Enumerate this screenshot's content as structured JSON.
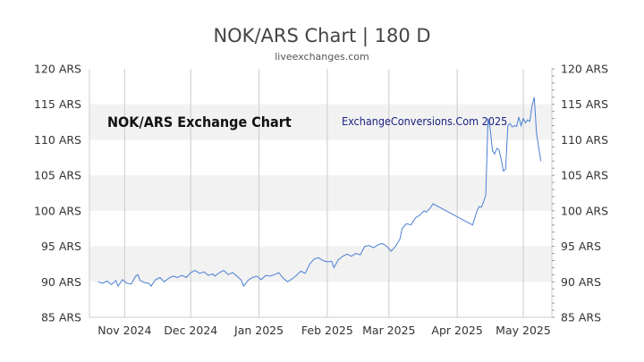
{
  "chart_data": {
    "type": "line",
    "title": "NOK/ARS Chart | 180 D",
    "subtitle": "liveexchanges.com",
    "inner_title": "NOK/ARS Exchange Chart",
    "watermark": "ExchangeConversions.Com 2025",
    "ylim": [
      85,
      120
    ],
    "y_ticks": [
      {
        "value": 120,
        "label": "120 ARS"
      },
      {
        "value": 115,
        "label": "115 ARS"
      },
      {
        "value": 110,
        "label": "110 ARS"
      },
      {
        "value": 105,
        "label": "105 ARS"
      },
      {
        "value": 100,
        "label": "100 ARS"
      },
      {
        "value": 95,
        "label": "95 ARS"
      },
      {
        "value": 90,
        "label": "90 ARS"
      },
      {
        "value": 85,
        "label": "85 ARS"
      }
    ],
    "x_ticks": [
      {
        "date": "2024-11-01",
        "label": "Nov 2024"
      },
      {
        "date": "2024-12-01",
        "label": "Dec 2024"
      },
      {
        "date": "2025-01-01",
        "label": "Jan 2025"
      },
      {
        "date": "2025-02-01",
        "label": "Feb 2025"
      },
      {
        "date": "2025-03-01",
        "label": "Mar 2025"
      },
      {
        "date": "2025-04-01",
        "label": "Apr 2025"
      },
      {
        "date": "2025-05-01",
        "label": "May 2025"
      }
    ],
    "xlim": [
      "2024-10-16",
      "2025-05-14"
    ],
    "grid": true,
    "colors": {
      "line": "#4a7fd4",
      "band": "#f2f2f2",
      "grid": "#cccccc"
    },
    "series": [
      {
        "values": [
          [
            "2024-10-20",
            90.0
          ],
          [
            "2024-10-22",
            89.8
          ],
          [
            "2024-10-24",
            90.1
          ],
          [
            "2024-10-26",
            89.6
          ],
          [
            "2024-10-28",
            90.2
          ],
          [
            "2024-10-29",
            89.4
          ],
          [
            "2024-10-31",
            90.3
          ],
          [
            "2024-11-02",
            89.8
          ],
          [
            "2024-11-04",
            89.7
          ],
          [
            "2024-11-06",
            90.8
          ],
          [
            "2024-11-07",
            91.0
          ],
          [
            "2024-11-08",
            90.2
          ],
          [
            "2024-11-10",
            89.9
          ],
          [
            "2024-11-12",
            89.8
          ],
          [
            "2024-11-13",
            89.4
          ],
          [
            "2024-11-15",
            90.3
          ],
          [
            "2024-11-17",
            90.6
          ],
          [
            "2024-11-19",
            90.0
          ],
          [
            "2024-11-21",
            90.5
          ],
          [
            "2024-11-23",
            90.8
          ],
          [
            "2024-11-25",
            90.6
          ],
          [
            "2024-11-27",
            90.9
          ],
          [
            "2024-11-29",
            90.6
          ],
          [
            "2024-12-01",
            91.3
          ],
          [
            "2024-12-03",
            91.6
          ],
          [
            "2024-12-05",
            91.2
          ],
          [
            "2024-12-07",
            91.4
          ],
          [
            "2024-12-09",
            90.9
          ],
          [
            "2024-12-11",
            91.1
          ],
          [
            "2024-12-12",
            90.8
          ],
          [
            "2024-12-14",
            91.3
          ],
          [
            "2024-12-16",
            91.6
          ],
          [
            "2024-12-18",
            91.0
          ],
          [
            "2024-12-20",
            91.3
          ],
          [
            "2024-12-22",
            90.8
          ],
          [
            "2024-12-24",
            90.2
          ],
          [
            "2024-12-25",
            89.4
          ],
          [
            "2024-12-27",
            90.2
          ],
          [
            "2024-12-29",
            90.6
          ],
          [
            "2024-12-31",
            90.8
          ],
          [
            "2025-01-02",
            90.3
          ],
          [
            "2025-01-04",
            90.9
          ],
          [
            "2025-01-06",
            90.8
          ],
          [
            "2025-01-08",
            91.0
          ],
          [
            "2025-01-10",
            91.3
          ],
          [
            "2025-01-12",
            90.5
          ],
          [
            "2025-01-14",
            90.0
          ],
          [
            "2025-01-16",
            90.4
          ],
          [
            "2025-01-18",
            90.9
          ],
          [
            "2025-01-20",
            91.5
          ],
          [
            "2025-01-22",
            91.2
          ],
          [
            "2025-01-24",
            92.5
          ],
          [
            "2025-01-26",
            93.2
          ],
          [
            "2025-01-28",
            93.4
          ],
          [
            "2025-01-30",
            93.0
          ],
          [
            "2025-02-01",
            92.8
          ],
          [
            "2025-02-03",
            92.9
          ],
          [
            "2025-02-04",
            92.0
          ],
          [
            "2025-02-06",
            93.1
          ],
          [
            "2025-02-08",
            93.6
          ],
          [
            "2025-02-10",
            93.9
          ],
          [
            "2025-02-12",
            93.6
          ],
          [
            "2025-02-14",
            94.0
          ],
          [
            "2025-02-16",
            93.8
          ],
          [
            "2025-02-18",
            95.0
          ],
          [
            "2025-02-20",
            95.1
          ],
          [
            "2025-02-22",
            94.8
          ],
          [
            "2025-02-24",
            95.2
          ],
          [
            "2025-02-26",
            95.4
          ],
          [
            "2025-02-28",
            95.0
          ],
          [
            "2025-03-02",
            94.3
          ],
          [
            "2025-03-04",
            95.0
          ],
          [
            "2025-03-06",
            96.0
          ],
          [
            "2025-03-07",
            97.5
          ],
          [
            "2025-03-09",
            98.2
          ],
          [
            "2025-03-11",
            98.0
          ],
          [
            "2025-03-13",
            99.0
          ],
          [
            "2025-03-15",
            99.4
          ],
          [
            "2025-03-17",
            100.0
          ],
          [
            "2025-03-18",
            99.8
          ],
          [
            "2025-03-20",
            100.5
          ],
          [
            "2025-03-21",
            101.0
          ],
          [
            "2025-04-05",
            98.5
          ],
          [
            "2025-04-08",
            98.0
          ],
          [
            "2025-04-10",
            100.0
          ],
          [
            "2025-04-11",
            100.6
          ],
          [
            "2025-04-12",
            100.5
          ],
          [
            "2025-04-13",
            101.3
          ],
          [
            "2025-04-14",
            102.2
          ],
          [
            "2025-04-15",
            113.0
          ],
          [
            "2025-04-16",
            111.5
          ],
          [
            "2025-04-17",
            108.5
          ],
          [
            "2025-04-18",
            108.0
          ],
          [
            "2025-04-19",
            108.8
          ],
          [
            "2025-04-20",
            108.6
          ],
          [
            "2025-04-21",
            107.2
          ],
          [
            "2025-04-22",
            105.6
          ],
          [
            "2025-04-23",
            105.9
          ],
          [
            "2025-04-24",
            112.0
          ],
          [
            "2025-04-25",
            112.3
          ],
          [
            "2025-04-26",
            111.8
          ],
          [
            "2025-04-27",
            112.0
          ],
          [
            "2025-04-28",
            111.9
          ],
          [
            "2025-04-29",
            113.2
          ],
          [
            "2025-04-30",
            112.0
          ],
          [
            "2025-05-01",
            113.0
          ],
          [
            "2025-05-02",
            112.4
          ],
          [
            "2025-05-03",
            112.8
          ],
          [
            "2025-05-04",
            112.6
          ],
          [
            "2025-05-05",
            114.8
          ],
          [
            "2025-05-06",
            116.0
          ],
          [
            "2025-05-07",
            111.0
          ],
          [
            "2025-05-08",
            109.0
          ],
          [
            "2025-05-09",
            107.0
          ]
        ]
      }
    ]
  }
}
